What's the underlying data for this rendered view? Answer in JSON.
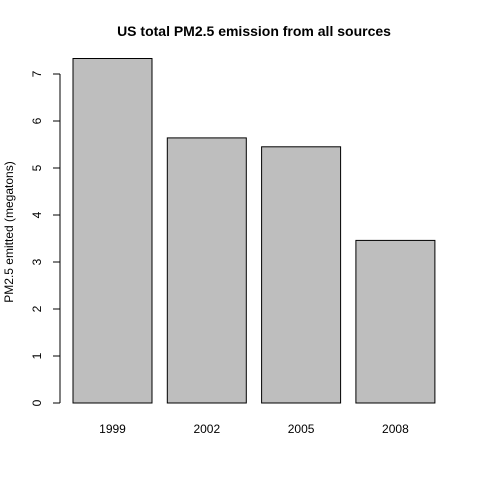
{
  "chart_data": {
    "type": "bar",
    "title": "US total PM2.5 emission from all sources",
    "xlabel": "",
    "ylabel": "PM2.5 emitted (megatons)",
    "categories": [
      "1999",
      "2002",
      "2005",
      "2008"
    ],
    "values": [
      7.33,
      5.64,
      5.45,
      3.46
    ],
    "ylim": [
      0,
      7
    ],
    "yticks": [
      "0",
      "1",
      "2",
      "3",
      "4",
      "5",
      "6",
      "7"
    ],
    "grid": false,
    "legend": "none",
    "colors": {
      "bar_fill": "#bebebe",
      "bar_stroke": "#000000"
    }
  }
}
